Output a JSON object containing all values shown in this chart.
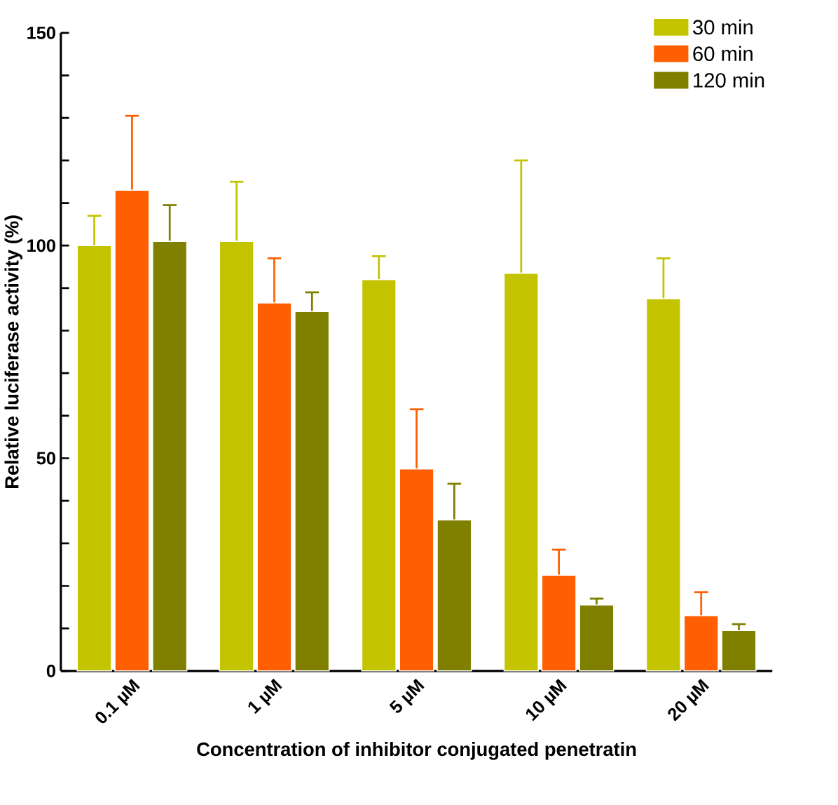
{
  "chart_data": {
    "type": "bar",
    "xlabel": "Concentration of inhibitor conjugated penetratin",
    "ylabel": "Relative luciferase activity (%)",
    "categories": [
      "0.1 µM",
      "1 µM",
      "5 µM",
      "10 µM",
      "20 µM"
    ],
    "series": [
      {
        "name": "30 min",
        "color": "#c3c300",
        "values": [
          100,
          101,
          92,
          93.5,
          87.5
        ],
        "errors": [
          7,
          14,
          5.5,
          26.5,
          9.5
        ]
      },
      {
        "name": "60 min",
        "color": "#ff5f00",
        "values": [
          113,
          86.5,
          47.5,
          22.5,
          13
        ],
        "errors": [
          17.5,
          10.5,
          14,
          6,
          5.5
        ]
      },
      {
        "name": "120 min",
        "color": "#7f7f00",
        "values": [
          101,
          84.5,
          35.5,
          15.5,
          9.5
        ],
        "errors": [
          8.5,
          4.5,
          8.5,
          1.5,
          1.5
        ]
      }
    ],
    "ylim": [
      0,
      150
    ],
    "yticks": [
      0,
      {
        "value": 10,
        "label": null
      },
      {
        "value": 20,
        "label": null
      },
      {
        "value": 30,
        "label": null
      },
      {
        "value": 40,
        "label": null
      },
      50,
      {
        "value": 60,
        "label": null
      },
      {
        "value": 70,
        "label": null
      },
      {
        "value": 80,
        "label": null
      },
      {
        "value": 90,
        "label": null
      },
      100,
      {
        "value": 110,
        "label": null
      },
      {
        "value": 120,
        "label": null
      },
      {
        "value": 130,
        "label": null
      },
      {
        "value": 140,
        "label": null
      },
      150
    ],
    "legend": "top right",
    "grid": false
  }
}
